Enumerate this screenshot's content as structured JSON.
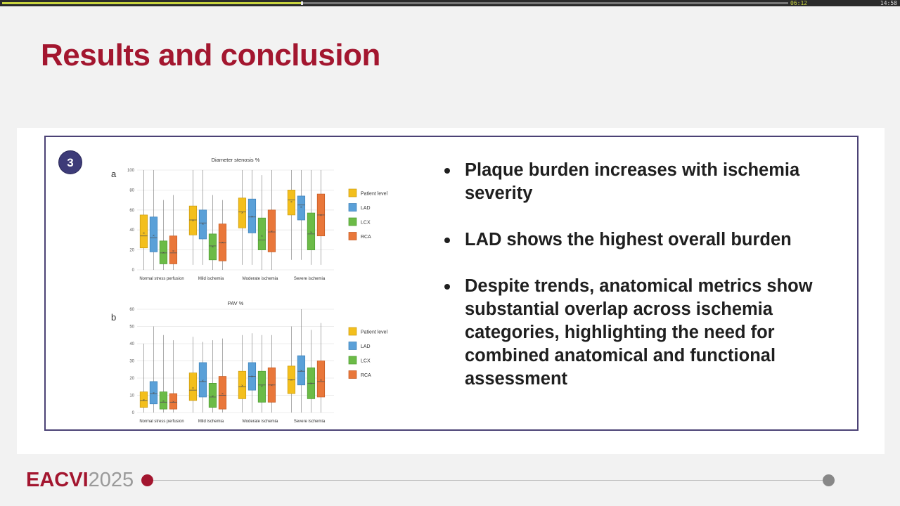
{
  "player": {
    "elapsed": "06:12",
    "duration": "14:58",
    "progress": 0.38
  },
  "slide": {
    "title": "Results and conclusion",
    "badge": "3",
    "bullets": [
      "Plaque burden increases with ischemia severity",
      "LAD shows the highest overall burden",
      "Despite trends, anatomical metrics show substantial overlap across ischemia categories, highlighting the need for combined anatomical and functional assessment"
    ]
  },
  "footer": {
    "brand": "EACVI",
    "year": "2025"
  },
  "colors": {
    "accent": "#a3162f",
    "badge": "#3d3b78",
    "frame": "#4b4275",
    "patient": "#f3bf1d",
    "lad": "#5aa0d8",
    "lcx": "#6cbb47",
    "rca": "#e9773a"
  },
  "chart_data": [
    {
      "type": "box",
      "panel_label": "a",
      "title": "Diameter stenosis %",
      "categories": [
        "Normal stress perfusion",
        "Mild ischemia",
        "Moderate ischemia",
        "Severe ischemia"
      ],
      "yticks": [
        0,
        20,
        40,
        60,
        80,
        100
      ],
      "ylim": [
        0,
        100
      ],
      "legend": [
        "Patient level",
        "LAD",
        "LCX",
        "RCA"
      ],
      "series": [
        {
          "name": "Patient level",
          "boxes": [
            [
              0,
              22,
              34,
              55,
              100
            ],
            [
              5,
              35,
              50,
              64,
              100
            ],
            [
              5,
              42,
              58,
              72,
              100
            ],
            [
              10,
              55,
              70,
              80,
              100
            ]
          ]
        },
        {
          "name": "LAD",
          "boxes": [
            [
              0,
              18,
              32,
              53,
              100
            ],
            [
              5,
              31,
              47,
              60,
              100
            ],
            [
              5,
              37,
              53,
              71,
              100
            ],
            [
              10,
              50,
              65,
              74,
              100
            ]
          ]
        },
        {
          "name": "LCX",
          "boxes": [
            [
              0,
              6,
              17,
              29,
              70
            ],
            [
              0,
              10,
              24,
              36,
              75
            ],
            [
              0,
              20,
              30,
              52,
              95
            ],
            [
              5,
              20,
              36,
              57,
              100
            ]
          ]
        },
        {
          "name": "RCA",
          "boxes": [
            [
              0,
              6,
              17,
              34,
              75
            ],
            [
              0,
              9,
              27,
              46,
              70
            ],
            [
              0,
              18,
              38,
              60,
              100
            ],
            [
              5,
              34,
              55,
              76,
              100
            ]
          ]
        }
      ]
    },
    {
      "type": "box",
      "panel_label": "b",
      "title": "PAV %",
      "categories": [
        "Normal stress perfusion",
        "Mild ischemia",
        "Moderate ischemia",
        "Severe ischemia"
      ],
      "yticks": [
        0,
        10,
        20,
        30,
        40,
        50,
        60
      ],
      "ylim": [
        0,
        60
      ],
      "legend": [
        "Patient level",
        "LAD",
        "LCX",
        "RCA"
      ],
      "series": [
        {
          "name": "Patient level",
          "boxes": [
            [
              0,
              3,
              7,
              12,
              40
            ],
            [
              0,
              7,
              13,
              23,
              44
            ],
            [
              0,
              8,
              15,
              24,
              45
            ],
            [
              0,
              11,
              19,
              27,
              50
            ]
          ]
        },
        {
          "name": "LAD",
          "boxes": [
            [
              0,
              5,
              11,
              18,
              50
            ],
            [
              0,
              9,
              18,
              29,
              41
            ],
            [
              0,
              13,
              21,
              29,
              46
            ],
            [
              0,
              16,
              24,
              33,
              60
            ]
          ]
        },
        {
          "name": "LCX",
          "boxes": [
            [
              0,
              2,
              6,
              12,
              45
            ],
            [
              0,
              3,
              9,
              17,
              42
            ],
            [
              0,
              6,
              16,
              24,
              45
            ],
            [
              0,
              8,
              17,
              26,
              48
            ]
          ]
        },
        {
          "name": "RCA",
          "boxes": [
            [
              0,
              2,
              6,
              11,
              42
            ],
            [
              0,
              2,
              10,
              21,
              43
            ],
            [
              0,
              6,
              16,
              26,
              45
            ],
            [
              0,
              9,
              18,
              30,
              52
            ]
          ]
        }
      ]
    }
  ]
}
